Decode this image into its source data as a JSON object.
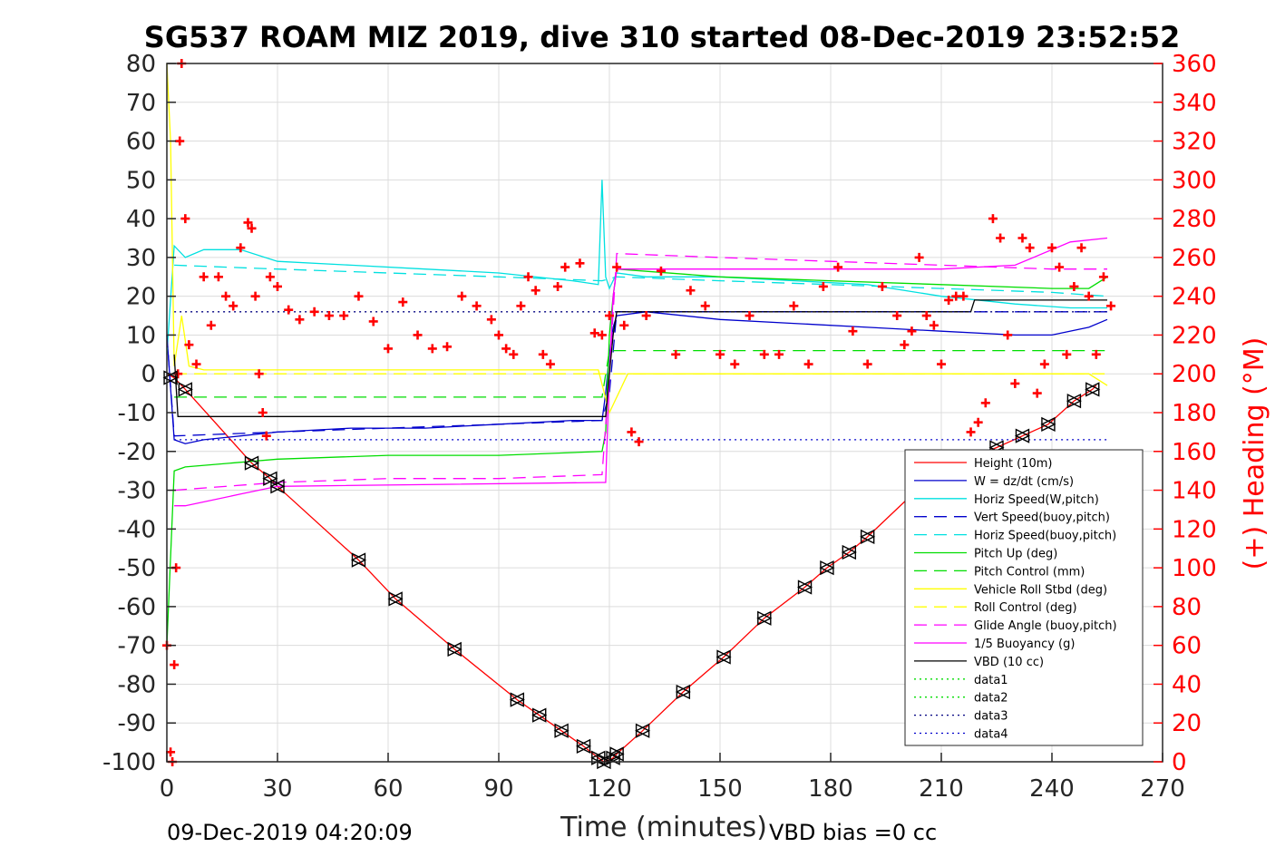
{
  "chart_data": {
    "type": "line",
    "title": "SG537 ROAM MIZ 2019, dive 310 started 08-Dec-2019 23:52:52",
    "xlabel": "Time (minutes)",
    "ylabel_right": "(+) Heading (°M)",
    "xlim": [
      0,
      270
    ],
    "ylim": [
      -100,
      80
    ],
    "ylim_right": [
      0,
      360
    ],
    "x_ticks": [
      "0",
      "30",
      "60",
      "90",
      "120",
      "150",
      "180",
      "210",
      "240",
      "270"
    ],
    "y_ticks": [
      "80",
      "70",
      "60",
      "50",
      "40",
      "30",
      "20",
      "10",
      "0",
      "-10",
      "-20",
      "-30",
      "-40",
      "-50",
      "-60",
      "-70",
      "-80",
      "-90",
      "-100"
    ],
    "y_right_ticks": [
      "360",
      "340",
      "320",
      "300",
      "280",
      "260",
      "240",
      "220",
      "200",
      "180",
      "160",
      "140",
      "120",
      "100",
      "80",
      "60",
      "40",
      "20",
      "0"
    ],
    "grid": true,
    "legend_position": "bottom-right",
    "footer_left": "09-Dec-2019 04:20:09",
    "footer_right": "VBD bias =0 cc",
    "series": [
      {
        "name": "Height (10m)",
        "color": "#ff0000",
        "style": "solid",
        "x": [
          0,
          2,
          5,
          23,
          28,
          30,
          52,
          62,
          78,
          95,
          101,
          107,
          113,
          117,
          118.5,
          120,
          121,
          122,
          129,
          140,
          151,
          162,
          173,
          179,
          185,
          190,
          200,
          210,
          225,
          232,
          239,
          246,
          251,
          252
        ],
        "y": [
          0,
          -1,
          -4,
          -23,
          -27,
          -29,
          -48,
          -58,
          -71,
          -84,
          -88,
          -92,
          -96,
          -99,
          -100,
          -99.5,
          -99,
          -98,
          -92,
          -82,
          -73,
          -63,
          -55,
          -50,
          -46,
          -42,
          -33,
          -25,
          -19,
          -16,
          -13,
          -7,
          -4,
          -3
        ]
      },
      {
        "name": "W = dz/dt (cm/s)",
        "color": "#0000cc",
        "style": "solid",
        "x": [
          0,
          2,
          5,
          10,
          20,
          30,
          50,
          70,
          90,
          110,
          118,
          119,
          120,
          121,
          122,
          130,
          150,
          170,
          190,
          210,
          230,
          240,
          250,
          255
        ],
        "y": [
          10,
          -17,
          -18,
          -17,
          -16,
          -15,
          -14,
          -14,
          -13,
          -12,
          -12,
          -5,
          5,
          12,
          15,
          16,
          14,
          13,
          12,
          11,
          10,
          10,
          12,
          14
        ]
      },
      {
        "name": "Horiz Speed(W,pitch)",
        "color": "#00e0e0",
        "style": "solid",
        "x": [
          0,
          2,
          5,
          10,
          20,
          30,
          50,
          70,
          90,
          110,
          117,
          118,
          119,
          120,
          122,
          130,
          150,
          170,
          190,
          210,
          230,
          245,
          255
        ],
        "y": [
          5,
          33,
          30,
          32,
          32,
          29,
          28,
          27,
          26,
          24,
          23,
          50,
          25,
          22,
          26,
          25,
          25,
          24,
          23,
          20,
          18,
          17,
          17
        ]
      },
      {
        "name": "Vert Speed(buoy,pitch)",
        "color": "#0000cc",
        "style": "dashed",
        "x": [
          0,
          2,
          30,
          60,
          90,
          118,
          120,
          122,
          150,
          180,
          210,
          240,
          255
        ],
        "y": [
          10,
          -16,
          -15,
          -14,
          -13,
          -12,
          -5,
          16,
          16,
          16,
          16,
          16,
          16
        ]
      },
      {
        "name": "Horiz Speed(buoy,pitch)",
        "color": "#00e0e0",
        "style": "dashed",
        "x": [
          2,
          30,
          60,
          90,
          118,
          122,
          150,
          180,
          210,
          240,
          255
        ],
        "y": [
          28,
          27,
          26,
          25,
          24,
          25,
          24,
          23,
          22,
          21,
          20
        ]
      },
      {
        "name": "Pitch Up (deg)",
        "color": "#00dd00",
        "style": "solid",
        "x": [
          0,
          2,
          5,
          30,
          60,
          90,
          118,
          119,
          120,
          121,
          122,
          150,
          180,
          210,
          240,
          250,
          255
        ],
        "y": [
          -70,
          -25,
          -24,
          -22,
          -21,
          -21,
          -20,
          -15,
          10,
          20,
          27,
          25,
          24,
          23,
          22,
          22,
          25
        ]
      },
      {
        "name": "Pitch Control (mm)",
        "color": "#00dd00",
        "style": "dashed",
        "x": [
          2,
          118,
          120,
          255
        ],
        "y": [
          -6,
          -6,
          6,
          6
        ]
      },
      {
        "name": "Vehicle Roll Stbd (deg)",
        "color": "#ffff00",
        "style": "solid",
        "x": [
          0,
          1,
          2,
          4,
          6,
          10,
          20,
          30,
          50,
          70,
          90,
          110,
          117,
          120,
          125,
          130,
          150,
          180,
          210,
          230,
          250,
          255
        ],
        "y": [
          80,
          60,
          2,
          15,
          2,
          1,
          1,
          1,
          1,
          1,
          1,
          1,
          1,
          -10,
          0,
          0,
          0,
          0,
          0,
          0,
          0,
          -3
        ]
      },
      {
        "name": "Roll Control (deg)",
        "color": "#ffff00",
        "style": "dashed",
        "x": [
          2,
          255
        ],
        "y": [
          0,
          0
        ]
      },
      {
        "name": "Glide Angle (buoy,pitch)",
        "color": "#ff00ff",
        "style": "dashed",
        "x": [
          2,
          30,
          60,
          90,
          118,
          120,
          122,
          150,
          180,
          210,
          240,
          255
        ],
        "y": [
          -30,
          -28,
          -27,
          -27,
          -26,
          0,
          31,
          30,
          29,
          28,
          27,
          27
        ]
      },
      {
        "name": "1/5 Buoyancy (g)",
        "color": "#ff00ff",
        "style": "solid",
        "x": [
          2,
          5,
          20,
          30,
          118,
          119,
          120,
          121,
          122,
          150,
          180,
          210,
          230,
          245,
          255
        ],
        "y": [
          -34,
          -34,
          -31,
          -29,
          -28,
          -28,
          0,
          20,
          27,
          27,
          27,
          27,
          28,
          34,
          35
        ]
      },
      {
        "name": "VBD (10 cc)",
        "color": "#000000",
        "style": "solid",
        "x": [
          2,
          3,
          118,
          119,
          120,
          121,
          122,
          218,
          219,
          255
        ],
        "y": [
          5,
          -11,
          -11,
          -11,
          0,
          10,
          16,
          16,
          19,
          19
        ]
      },
      {
        "name": "data1",
        "color": "#00dd00",
        "style": "dotted",
        "x": [],
        "y": []
      },
      {
        "name": "data2",
        "color": "#00dd00",
        "style": "dotted",
        "x": [],
        "y": []
      },
      {
        "name": "data3",
        "color": "#000080",
        "style": "dotted",
        "x": [
          2,
          120,
          122,
          255
        ],
        "y": [
          16,
          16,
          16,
          16
        ]
      },
      {
        "name": "data4",
        "color": "#0000cc",
        "style": "dotted",
        "x": [
          2,
          255
        ],
        "y": [
          -17,
          -17
        ]
      }
    ],
    "heading": {
      "axis": "right",
      "marker": "+",
      "color": "#ff0000",
      "x": [
        0,
        1,
        1.5,
        2,
        2.5,
        3,
        3.5,
        4,
        5,
        6,
        8,
        10,
        12,
        14,
        16,
        18,
        20,
        22,
        23,
        24,
        25,
        26,
        27,
        28,
        30,
        33,
        36,
        40,
        44,
        48,
        52,
        56,
        60,
        64,
        68,
        72,
        76,
        80,
        84,
        88,
        90,
        92,
        94,
        96,
        98,
        100,
        102,
        104,
        106,
        108,
        112,
        116,
        118,
        120,
        122,
        124,
        126,
        128,
        130,
        134,
        138,
        142,
        146,
        150,
        154,
        158,
        162,
        166,
        170,
        174,
        178,
        182,
        186,
        190,
        194,
        198,
        200,
        202,
        204,
        206,
        208,
        210,
        212,
        214,
        216,
        218,
        220,
        222,
        224,
        226,
        228,
        230,
        232,
        234,
        236,
        238,
        240,
        242,
        244,
        246,
        248,
        250,
        252,
        254,
        256
      ],
      "y": [
        60,
        5,
        0,
        50,
        100,
        200,
        320,
        360,
        280,
        215,
        205,
        250,
        225,
        250,
        240,
        235,
        265,
        278,
        275,
        240,
        200,
        180,
        168,
        250,
        245,
        233,
        228,
        232,
        230,
        230,
        240,
        227,
        213,
        237,
        220,
        213,
        214,
        240,
        235,
        228,
        220,
        213,
        210,
        235,
        250,
        243,
        210,
        205,
        245,
        255,
        257,
        221,
        220,
        230,
        255,
        225,
        170,
        165,
        230,
        253,
        210,
        243,
        235,
        210,
        205,
        230,
        210,
        210,
        235,
        205,
        245,
        255,
        222,
        205,
        245,
        230,
        215,
        222,
        260,
        230,
        225,
        205,
        238,
        240,
        240,
        170,
        175,
        185,
        280,
        270,
        220,
        195,
        270,
        265,
        190,
        205,
        265,
        255,
        210,
        245,
        265,
        240,
        210,
        250,
        235
      ]
    },
    "markers": {
      "marker": "triangle",
      "color": "#000000",
      "x": [
        1,
        5,
        23,
        28,
        30,
        52,
        62,
        78,
        95,
        101,
        107,
        113,
        117,
        118.5,
        121,
        122,
        129,
        140,
        151,
        162,
        173,
        179,
        185,
        190,
        225,
        232,
        239,
        246,
        251
      ],
      "y": [
        -1,
        -4,
        -23,
        -27,
        -29,
        -48,
        -58,
        -71,
        -84,
        -88,
        -92,
        -96,
        -99,
        -100,
        -99,
        -98,
        -92,
        -82,
        -73,
        -63,
        -55,
        -50,
        -46,
        -42,
        -19,
        -16,
        -13,
        -7,
        -4
      ]
    }
  }
}
